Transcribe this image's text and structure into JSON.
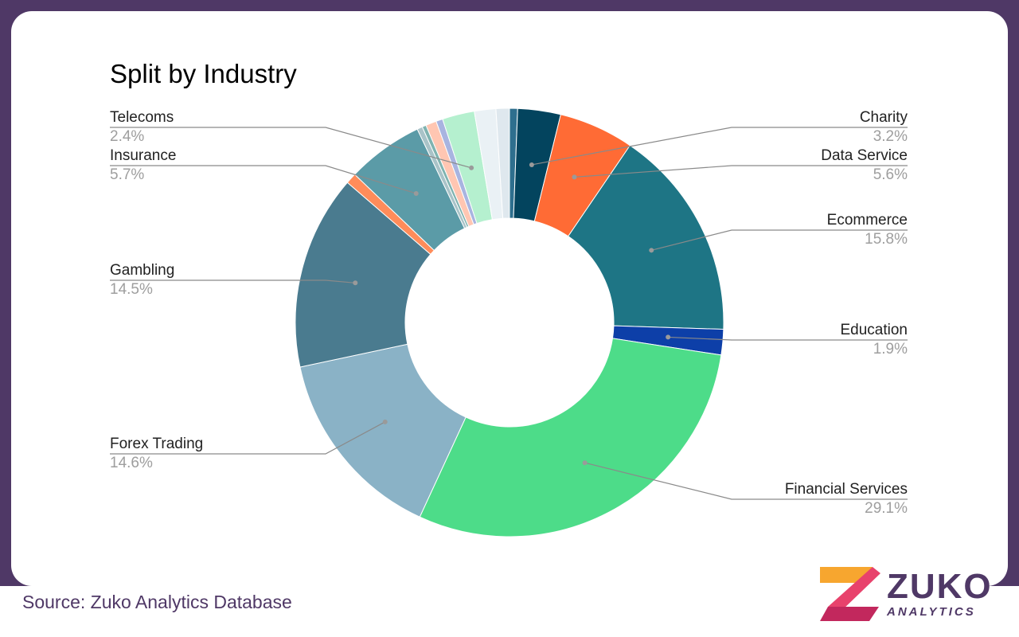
{
  "chart_data": {
    "type": "pie",
    "title": "Split by Industry",
    "hole": true,
    "slices": [
      {
        "label": "",
        "value": 0.6,
        "color": "#2e6f8e"
      },
      {
        "label": "Charity",
        "value": 3.2,
        "color": "#03445e",
        "pct_text": "3.2%"
      },
      {
        "label": "Data Service",
        "value": 5.6,
        "color": "#ff6b35",
        "pct_text": "5.6%"
      },
      {
        "label": "Ecommerce",
        "value": 15.8,
        "color": "#1e7585",
        "pct_text": "15.8%"
      },
      {
        "label": "Education",
        "value": 1.9,
        "color": "#0d3fa8",
        "pct_text": "1.9%"
      },
      {
        "label": "Financial Services",
        "value": 29.1,
        "color": "#4ddc89",
        "pct_text": "29.1%"
      },
      {
        "label": "Forex Trading",
        "value": 14.6,
        "color": "#8ab2c6",
        "pct_text": "14.6%"
      },
      {
        "label": "Gambling",
        "value": 14.5,
        "color": "#4a7b8f",
        "pct_text": "14.5%"
      },
      {
        "label": "",
        "value": 0.8,
        "color": "#ff8c5a"
      },
      {
        "label": "Insurance",
        "value": 5.7,
        "color": "#5b9ba7",
        "pct_text": "5.7%"
      },
      {
        "label": "",
        "value": 0.4,
        "color": "#a9c3c8"
      },
      {
        "label": "",
        "value": 0.3,
        "color": "#7fb3b0"
      },
      {
        "label": "",
        "value": 0.8,
        "color": "#ffc6b2"
      },
      {
        "label": "",
        "value": 0.5,
        "color": "#a8b4e0"
      },
      {
        "label": "Telecoms",
        "value": 2.4,
        "color": "#b5f0cf",
        "pct_text": "2.4%"
      },
      {
        "label": "",
        "value": 1.6,
        "color": "#eaf1f5"
      },
      {
        "label": "",
        "value": 1.0,
        "color": "#dfe8ee"
      }
    ]
  },
  "footer": {
    "source": "Source: Zuko Analytics Database"
  },
  "logo": {
    "word": "ZUKO",
    "sub": "ANALYTICS"
  },
  "colors": {
    "frame": "#4f3866",
    "leader": "#8a8a8a"
  }
}
